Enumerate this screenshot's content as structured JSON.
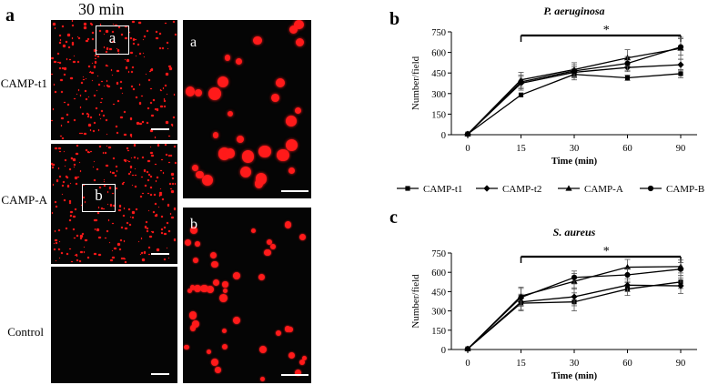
{
  "figure": {
    "panel_a_letter": "a",
    "panel_b_letter": "b",
    "panel_c_letter": "c",
    "time_header": "30 min",
    "rows": [
      "CAMP-t1",
      "CAMP-A",
      "Control"
    ],
    "roi_labels": [
      "a",
      "b"
    ],
    "zoom_labels": [
      "a",
      "b"
    ],
    "dot_color": "#ff1a1a"
  },
  "legend": [
    "CAMP-t1",
    "CAMP-t2",
    "CAMP-A",
    "CAMP-B"
  ],
  "chart_data": [
    {
      "type": "line",
      "title": "P. aeruginosa",
      "xlabel": "Time (min)",
      "ylabel": "Number/field",
      "x": [
        0,
        15,
        30,
        60,
        90
      ],
      "ylim": [
        0,
        750
      ],
      "yticks": [
        0,
        150,
        300,
        450,
        600,
        750
      ],
      "significance": "*",
      "series": [
        {
          "name": "CAMP-t1",
          "marker": "square",
          "values": [
            5,
            290,
            440,
            415,
            445
          ],
          "err": [
            0,
            0,
            40,
            20,
            30
          ]
        },
        {
          "name": "CAMP-t2",
          "marker": "diamond",
          "values": [
            5,
            375,
            455,
            490,
            510
          ],
          "err": [
            0,
            50,
            40,
            30,
            40
          ]
        },
        {
          "name": "CAMP-A",
          "marker": "triangle",
          "values": [
            5,
            400,
            475,
            560,
            630
          ],
          "err": [
            0,
            55,
            50,
            60,
            80
          ]
        },
        {
          "name": "CAMP-B",
          "marker": "circle",
          "values": [
            5,
            385,
            465,
            520,
            640
          ],
          "err": [
            0,
            50,
            45,
            50,
            60
          ]
        }
      ]
    },
    {
      "type": "line",
      "title": "S. aureus",
      "xlabel": "Time (min)",
      "ylabel": "Number/field",
      "x": [
        0,
        15,
        30,
        60,
        90
      ],
      "ylim": [
        0,
        750
      ],
      "yticks": [
        0,
        150,
        300,
        450,
        600,
        750
      ],
      "significance": "*",
      "series": [
        {
          "name": "CAMP-t1",
          "marker": "square",
          "values": [
            5,
            360,
            370,
            470,
            525
          ],
          "err": [
            0,
            60,
            70,
            50,
            50
          ]
        },
        {
          "name": "CAMP-t2",
          "marker": "diamond",
          "values": [
            5,
            370,
            410,
            500,
            495
          ],
          "err": [
            0,
            60,
            70,
            50,
            60
          ]
        },
        {
          "name": "CAMP-A",
          "marker": "triangle",
          "values": [
            5,
            415,
            530,
            640,
            645
          ],
          "err": [
            0,
            70,
            60,
            60,
            50
          ]
        },
        {
          "name": "CAMP-B",
          "marker": "circle",
          "values": [
            5,
            405,
            560,
            580,
            625
          ],
          "err": [
            0,
            70,
            50,
            50,
            50
          ]
        }
      ]
    }
  ]
}
